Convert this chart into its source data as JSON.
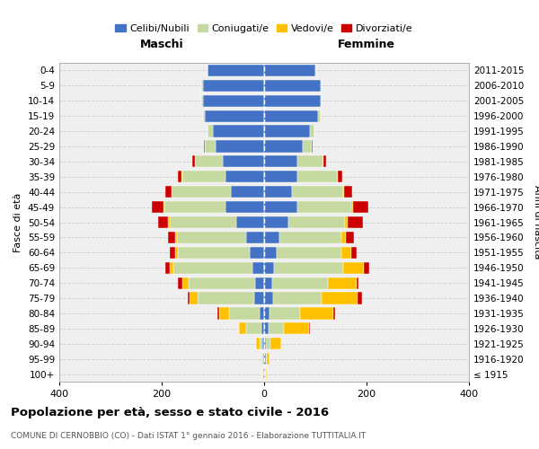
{
  "age_groups": [
    "0-4",
    "5-9",
    "10-14",
    "15-19",
    "20-24",
    "25-29",
    "30-34",
    "35-39",
    "40-44",
    "45-49",
    "50-54",
    "55-59",
    "60-64",
    "65-69",
    "70-74",
    "75-79",
    "80-84",
    "85-89",
    "90-94",
    "95-99",
    "100+"
  ],
  "birth_years": [
    "2011-2015",
    "2006-2010",
    "2001-2005",
    "1996-2000",
    "1991-1995",
    "1986-1990",
    "1981-1985",
    "1976-1980",
    "1971-1975",
    "1966-1970",
    "1961-1965",
    "1956-1960",
    "1951-1955",
    "1946-1950",
    "1941-1945",
    "1936-1940",
    "1931-1935",
    "1926-1930",
    "1921-1925",
    "1916-1920",
    "≤ 1915"
  ],
  "male_celibi": [
    110,
    120,
    120,
    115,
    100,
    95,
    80,
    75,
    65,
    75,
    55,
    35,
    28,
    22,
    18,
    20,
    8,
    5,
    3,
    2,
    2
  ],
  "male_coniugati": [
    1,
    2,
    2,
    5,
    10,
    20,
    55,
    85,
    115,
    120,
    130,
    135,
    140,
    155,
    130,
    110,
    60,
    30,
    5,
    2,
    1
  ],
  "male_vedovi": [
    0,
    0,
    0,
    0,
    0,
    0,
    0,
    1,
    1,
    2,
    2,
    3,
    5,
    8,
    12,
    15,
    20,
    15,
    8,
    2,
    1
  ],
  "male_divorziati": [
    0,
    0,
    0,
    0,
    0,
    3,
    5,
    8,
    12,
    22,
    20,
    15,
    12,
    8,
    8,
    5,
    3,
    0,
    0,
    0,
    0
  ],
  "female_nubili": [
    100,
    110,
    110,
    105,
    90,
    75,
    65,
    65,
    55,
    65,
    48,
    30,
    25,
    20,
    15,
    18,
    10,
    8,
    3,
    3,
    2
  ],
  "female_coniugate": [
    1,
    2,
    2,
    5,
    8,
    18,
    50,
    78,
    100,
    105,
    110,
    120,
    125,
    135,
    110,
    95,
    60,
    30,
    10,
    2,
    1
  ],
  "female_vedove": [
    0,
    0,
    0,
    0,
    0,
    0,
    1,
    1,
    2,
    3,
    5,
    10,
    20,
    40,
    55,
    70,
    65,
    50,
    20,
    5,
    2
  ],
  "female_divorziate": [
    0,
    0,
    0,
    0,
    0,
    2,
    5,
    8,
    15,
    30,
    30,
    15,
    10,
    10,
    5,
    8,
    3,
    2,
    0,
    0,
    0
  ],
  "colors": {
    "celibi_nubili": "#4472c4",
    "coniugati": "#c5d9a0",
    "vedovi": "#ffc000",
    "divorziati": "#cc0000"
  },
  "title": "Popolazione per età, sesso e stato civile - 2016",
  "subtitle": "COMUNE DI CERNOBBIO (CO) - Dati ISTAT 1° gennaio 2016 - Elaborazione TUTTITALIA.IT",
  "label_maschi": "Maschi",
  "label_femmine": "Femmine",
  "ylabel_left": "Fasce di età",
  "ylabel_right": "Anni di nascita",
  "xlim": 400,
  "legend_labels": [
    "Celibi/Nubili",
    "Coniugati/e",
    "Vedovi/e",
    "Divorziati/e"
  ],
  "bg_color": "#efefef"
}
